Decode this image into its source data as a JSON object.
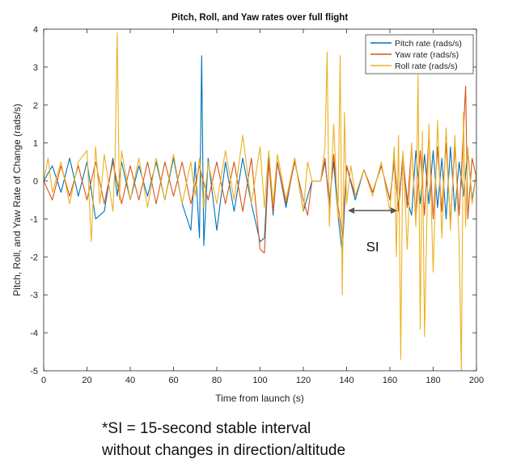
{
  "chart_data": {
    "type": "line",
    "title": "Pitch, Roll, and Yaw rates over full flight",
    "xlabel": "Time from launch (s)",
    "ylabel": "Pitch, Roll, and Yaw Rate of Change (rads/s)",
    "xlim": [
      0,
      200
    ],
    "ylim": [
      -5,
      4
    ],
    "xticks": [
      0,
      20,
      40,
      60,
      80,
      100,
      120,
      140,
      160,
      180,
      200
    ],
    "yticks": [
      -5,
      -4,
      -3,
      -2,
      -1,
      0,
      1,
      2,
      3,
      4
    ],
    "grid": false,
    "legend_position": "top-right",
    "series": [
      {
        "name": "Pitch rate (rads/s)",
        "color": "#0072BD",
        "x": [
          0,
          4,
          8,
          12,
          16,
          20,
          24,
          28,
          32,
          34,
          36,
          40,
          44,
          48,
          52,
          56,
          60,
          64,
          68,
          70,
          72,
          73,
          74,
          76,
          80,
          84,
          88,
          92,
          96,
          100,
          102,
          104,
          106,
          108,
          112,
          116,
          120,
          122,
          124,
          126,
          128,
          130,
          132,
          134,
          136,
          138,
          140,
          144,
          148,
          152,
          156,
          160,
          162,
          164,
          166,
          168,
          170,
          172,
          174,
          176,
          178,
          180,
          182,
          184,
          186,
          188,
          190,
          192,
          194,
          196,
          198,
          200
        ],
        "values": [
          0,
          0.4,
          -0.3,
          0.6,
          -0.4,
          0.5,
          -1.0,
          -0.8,
          0.6,
          -0.4,
          0.5,
          -0.5,
          0.4,
          -0.4,
          0.5,
          -0.5,
          0.6,
          -0.6,
          -1.3,
          0.5,
          -1.5,
          3.3,
          -1.7,
          0.6,
          -1.3,
          0.5,
          -0.8,
          0.6,
          -0.6,
          -1.6,
          -1.5,
          0.6,
          -0.9,
          0.5,
          -0.7,
          0.6,
          -0.8,
          -0.4,
          0,
          0,
          0,
          0.5,
          -0.5,
          0.5,
          -0.9,
          -1.9,
          0.4,
          -0.5,
          0.3,
          -0.3,
          0.4,
          -0.5,
          0.5,
          -0.7,
          0.6,
          -0.5,
          -0.9,
          0.8,
          -0.6,
          0.7,
          -0.6,
          0.8,
          -0.7,
          0.6,
          -1.0,
          0.9,
          -0.8,
          0.5,
          -0.4,
          0.8,
          -0.5,
          0.2
        ]
      },
      {
        "name": "Yaw rate (rads/s)",
        "color": "#D95319",
        "x": [
          0,
          4,
          8,
          12,
          16,
          20,
          24,
          28,
          32,
          36,
          40,
          44,
          48,
          52,
          56,
          60,
          64,
          68,
          72,
          76,
          80,
          84,
          88,
          92,
          96,
          100,
          102,
          104,
          106,
          108,
          112,
          116,
          120,
          122,
          124,
          126,
          128,
          130,
          132,
          134,
          136,
          138,
          140,
          144,
          148,
          152,
          156,
          160,
          162,
          164,
          166,
          168,
          170,
          172,
          174,
          176,
          178,
          180,
          182,
          184,
          186,
          188,
          190,
          192,
          194,
          195,
          196,
          198,
          200
        ],
        "values": [
          0,
          -0.5,
          0.4,
          -0.4,
          0.4,
          -0.5,
          0.5,
          -0.6,
          0.5,
          -0.6,
          0.4,
          -0.5,
          0.5,
          -0.6,
          0.5,
          -0.4,
          0.5,
          -0.6,
          0.4,
          -0.5,
          0.5,
          -0.6,
          0.5,
          -0.8,
          0.6,
          -1.8,
          -1.9,
          0.5,
          -0.8,
          0.5,
          -0.6,
          0.5,
          -0.5,
          -0.9,
          0,
          0,
          0,
          0.6,
          -0.7,
          0.7,
          -0.6,
          -1.5,
          0.4,
          -0.4,
          0.3,
          -0.3,
          0.4,
          -0.5,
          0.6,
          -0.8,
          0.7,
          -0.7,
          0.9,
          -1.0,
          0.8,
          -0.9,
          1.2,
          -1.0,
          0.9,
          -0.8,
          1.0,
          -1.1,
          0.9,
          -0.9,
          1.3,
          2.5,
          -1.0,
          0.6,
          0.1
        ]
      },
      {
        "name": "Roll rate (rads/s)",
        "color": "#EDB120",
        "x": [
          0,
          2,
          4,
          8,
          12,
          16,
          20,
          22,
          24,
          26,
          28,
          32,
          33,
          34,
          35,
          36,
          40,
          44,
          48,
          52,
          56,
          60,
          64,
          68,
          70,
          72,
          74,
          76,
          80,
          84,
          88,
          92,
          96,
          100,
          102,
          104,
          106,
          108,
          112,
          116,
          120,
          122,
          124,
          126,
          128,
          130,
          131,
          132,
          134,
          136,
          137,
          138,
          139,
          140,
          142,
          144,
          148,
          152,
          156,
          160,
          162,
          163,
          164,
          165,
          166,
          168,
          170,
          172,
          173,
          174,
          175,
          176,
          178,
          180,
          182,
          184,
          186,
          188,
          190,
          192,
          193,
          194,
          195,
          196,
          198,
          200
        ],
        "values": [
          0,
          0.6,
          -0.3,
          0.5,
          -0.6,
          0.5,
          0.8,
          -1.6,
          0.9,
          -0.6,
          0.7,
          -0.8,
          0.6,
          3.9,
          -0.5,
          0.8,
          -0.5,
          0.6,
          -0.7,
          0.6,
          -0.5,
          0.7,
          -0.6,
          0.5,
          -0.4,
          0.6,
          -0.7,
          0.5,
          -0.6,
          0.8,
          -0.5,
          1.2,
          -0.6,
          0.9,
          -0.7,
          0.8,
          -0.6,
          0.7,
          -0.5,
          0.6,
          -0.8,
          0.5,
          0,
          0,
          0,
          0.9,
          3.4,
          -1.2,
          1.5,
          -1.0,
          3.3,
          -3.0,
          1.8,
          -0.6,
          0.4,
          -0.4,
          0.3,
          -0.4,
          0.5,
          -0.8,
          0.9,
          -2.0,
          1.2,
          -4.7,
          0.8,
          -1.8,
          1.0,
          -1.2,
          2.8,
          -3.9,
          1.3,
          -4.1,
          1.5,
          -2.4,
          1.6,
          -1.5,
          1.4,
          -1.3,
          1.2,
          -1.6,
          -5.0,
          1.8,
          -1.2,
          0.9,
          -0.6,
          0.2
        ]
      }
    ],
    "annotations": [
      {
        "type": "double-arrow",
        "from_x": 141,
        "to_x": 163,
        "y": -0.78,
        "color": "#555555"
      },
      {
        "type": "text",
        "text": "SI",
        "x": 152,
        "y": -1.85
      }
    ]
  },
  "footnote": {
    "line1": "*SI = 15-second stable interval",
    "line2": "without changes in direction/altitude"
  }
}
